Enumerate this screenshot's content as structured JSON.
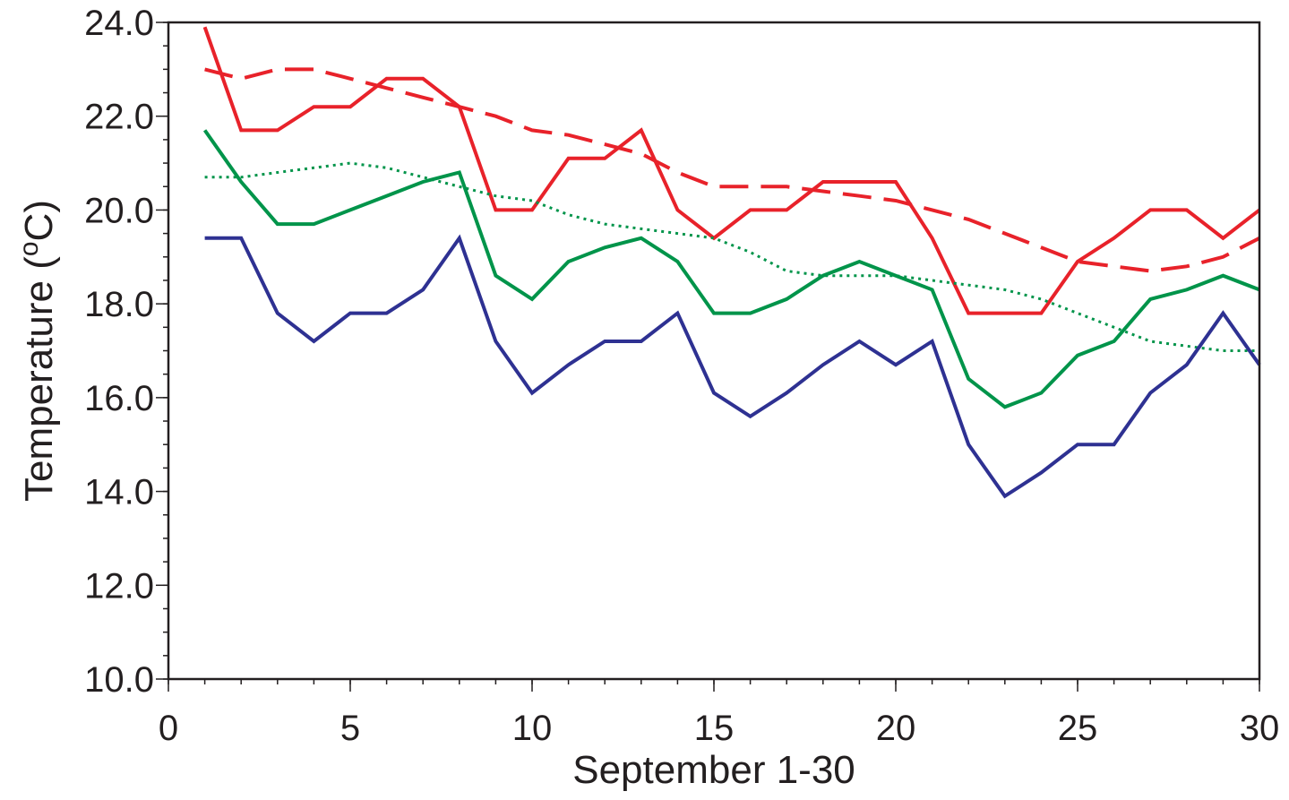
{
  "chart_data": {
    "type": "line",
    "xlabel": "September 1-30",
    "ylabel_parts": [
      "Temperature (",
      "o",
      "C)"
    ],
    "xlim": [
      0,
      30
    ],
    "ylim": [
      10,
      24
    ],
    "xticks": [
      "0",
      "5",
      "10",
      "15",
      "20",
      "25",
      "30"
    ],
    "yticks": [
      "10.0",
      "12.0",
      "14.0",
      "16.0",
      "18.0",
      "20.0",
      "22.0",
      "24.0"
    ],
    "x_minor_step": 1,
    "y_minor_step": 0.5,
    "grid": false,
    "legend": "none",
    "x": [
      1,
      2,
      3,
      4,
      5,
      6,
      7,
      8,
      9,
      10,
      11,
      12,
      13,
      14,
      15,
      16,
      17,
      18,
      19,
      20,
      21,
      22,
      23,
      24,
      25,
      26,
      27,
      28,
      29,
      30
    ],
    "series": [
      {
        "color": "#e8222a",
        "dash": "solid",
        "values": [
          23.9,
          21.7,
          21.7,
          22.2,
          22.2,
          22.8,
          22.8,
          22.2,
          20.0,
          20.0,
          21.1,
          21.1,
          21.7,
          20.0,
          19.4,
          20.0,
          20.0,
          20.6,
          20.6,
          20.6,
          19.4,
          17.8,
          17.8,
          17.8,
          18.9,
          19.4,
          20.0,
          20.0,
          19.4,
          20.0
        ]
      },
      {
        "color": "#e8222a",
        "dash": "dashed",
        "values": [
          23.0,
          22.8,
          23.0,
          23.0,
          22.8,
          22.6,
          22.4,
          22.2,
          22.0,
          21.7,
          21.6,
          21.4,
          21.2,
          20.8,
          20.5,
          20.5,
          20.5,
          20.4,
          20.3,
          20.2,
          20.0,
          19.8,
          19.5,
          19.2,
          18.9,
          18.8,
          18.7,
          18.8,
          19.0,
          19.4
        ]
      },
      {
        "color": "#00944a",
        "dash": "solid",
        "values": [
          21.7,
          20.6,
          19.7,
          19.7,
          20.0,
          20.3,
          20.6,
          20.8,
          18.6,
          18.1,
          18.9,
          19.2,
          19.4,
          18.9,
          17.8,
          17.8,
          18.1,
          18.6,
          18.9,
          18.6,
          18.3,
          16.4,
          15.8,
          16.1,
          16.9,
          17.2,
          18.1,
          18.3,
          18.6,
          18.3
        ]
      },
      {
        "color": "#00944a",
        "dash": "dotted",
        "values": [
          20.7,
          20.7,
          20.8,
          20.9,
          21.0,
          20.9,
          20.7,
          20.5,
          20.3,
          20.2,
          19.9,
          19.7,
          19.6,
          19.5,
          19.4,
          19.1,
          18.7,
          18.6,
          18.6,
          18.6,
          18.5,
          18.4,
          18.3,
          18.1,
          17.8,
          17.5,
          17.2,
          17.1,
          17.0,
          17.0
        ]
      },
      {
        "color": "#2e3192",
        "dash": "solid",
        "values": [
          19.4,
          19.4,
          17.8,
          17.2,
          17.8,
          17.8,
          18.3,
          19.4,
          17.2,
          16.1,
          16.7,
          17.2,
          17.2,
          17.8,
          16.1,
          15.6,
          16.1,
          16.7,
          17.2,
          16.7,
          17.2,
          15.0,
          13.9,
          14.4,
          15.0,
          15.0,
          16.1,
          16.7,
          17.8,
          16.7
        ]
      }
    ]
  }
}
